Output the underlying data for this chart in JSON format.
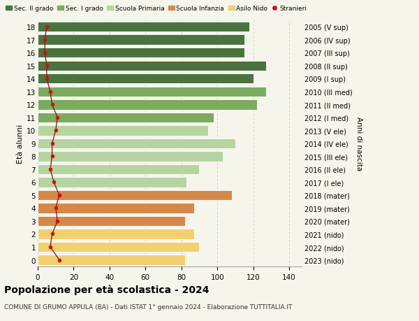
{
  "ages": [
    18,
    17,
    16,
    15,
    14,
    13,
    12,
    11,
    10,
    9,
    8,
    7,
    6,
    5,
    4,
    3,
    2,
    1,
    0
  ],
  "bar_values": [
    118,
    115,
    115,
    127,
    120,
    127,
    122,
    98,
    95,
    110,
    103,
    90,
    83,
    108,
    87,
    82,
    87,
    90,
    82
  ],
  "bar_colors": [
    "#4a7340",
    "#4a7340",
    "#4a7340",
    "#4a7340",
    "#4a7340",
    "#7aab5e",
    "#7aab5e",
    "#7aab5e",
    "#b5d4a0",
    "#b5d4a0",
    "#b5d4a0",
    "#b5d4a0",
    "#b5d4a0",
    "#d4894a",
    "#d4894a",
    "#d4894a",
    "#f0d070",
    "#f0d070",
    "#f0d070"
  ],
  "stranieri_values": [
    5,
    4,
    4,
    5,
    5,
    7,
    8,
    11,
    10,
    8,
    8,
    7,
    9,
    12,
    10,
    11,
    8,
    7,
    12
  ],
  "right_labels": [
    "2005 (V sup)",
    "2006 (IV sup)",
    "2007 (III sup)",
    "2008 (II sup)",
    "2009 (I sup)",
    "2010 (III med)",
    "2011 (II med)",
    "2012 (I med)",
    "2013 (V ele)",
    "2014 (IV ele)",
    "2015 (III ele)",
    "2016 (II ele)",
    "2017 (I ele)",
    "2018 (mater)",
    "2019 (mater)",
    "2020 (mater)",
    "2021 (nido)",
    "2022 (nido)",
    "2023 (nido)"
  ],
  "legend_labels": [
    "Sec. II grado",
    "Sec. I grado",
    "Scuola Primaria",
    "Scuola Infanzia",
    "Asilo Nido",
    "Stranieri"
  ],
  "legend_colors": [
    "#4a7340",
    "#7aab5e",
    "#b5d4a0",
    "#d4894a",
    "#f0d070",
    "#cc1111"
  ],
  "ylabel": "Età alunni",
  "right_ylabel": "Anni di nascita",
  "title": "Popolazione per età scolastica - 2024",
  "subtitle": "COMUNE DI GRUMO APPULA (BA) - Dati ISTAT 1° gennaio 2024 - Elaborazione TUTTITALIA.IT",
  "xlim": [
    0,
    147
  ],
  "background_color": "#f5f5eb",
  "grid_color": "#cccccc"
}
